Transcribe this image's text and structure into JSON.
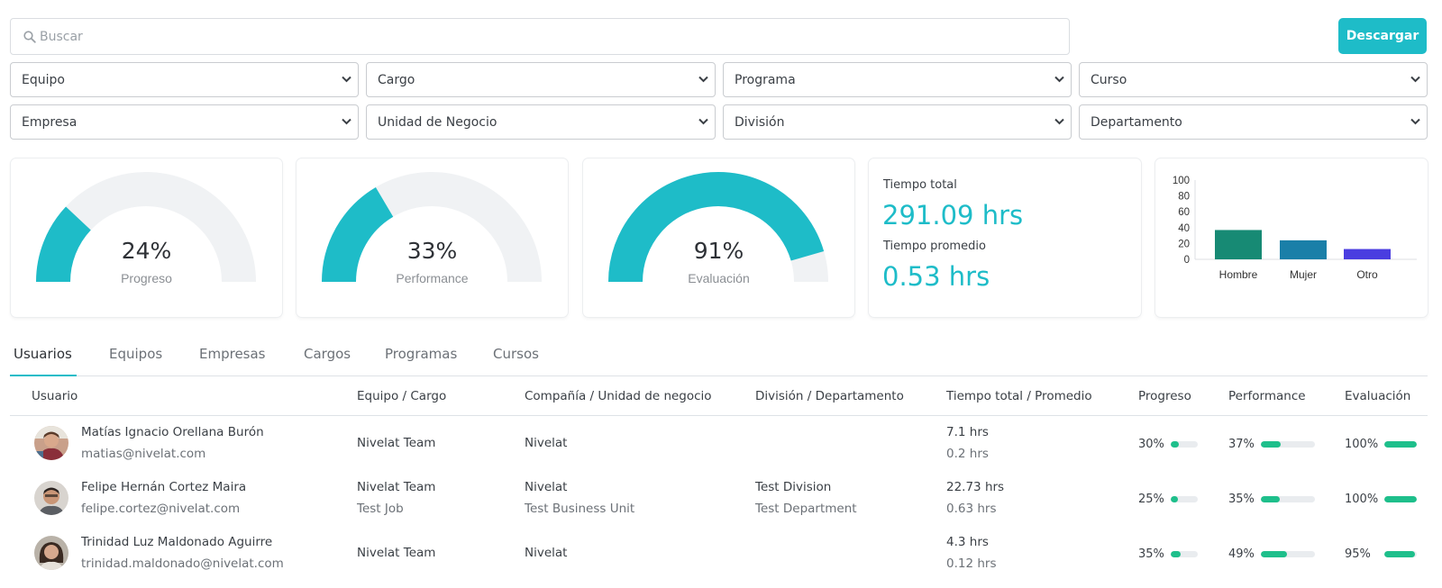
{
  "search": {
    "placeholder": "Buscar"
  },
  "download_label": "Descargar",
  "filters_row1": [
    "Equipo",
    "Cargo",
    "Programa",
    "Curso"
  ],
  "filters_row2": [
    "Empresa",
    "Unidad de Negocio",
    "División",
    "Departamento"
  ],
  "gauges": [
    {
      "value": 24,
      "display": "24%",
      "label": "Progreso"
    },
    {
      "value": 33,
      "display": "33%",
      "label": "Performance"
    },
    {
      "value": 91,
      "display": "91%",
      "label": "Evaluación"
    }
  ],
  "time": {
    "total_label": "Tiempo total",
    "total_value": "291.09 hrs",
    "avg_label": "Tiempo promedio",
    "avg_value": "0.53 hrs"
  },
  "chart_data": {
    "type": "bar",
    "categories": [
      "Hombre",
      "Mujer",
      "Otro"
    ],
    "values": [
      37,
      24,
      13
    ],
    "colors": [
      "#178a74",
      "#1a7fa8",
      "#4a3de0"
    ],
    "yticks": [
      0,
      20,
      40,
      60,
      80,
      100
    ],
    "ylim": [
      0,
      100
    ],
    "title": "",
    "xlabel": "",
    "ylabel": ""
  },
  "tabs": [
    "Usuarios",
    "Equipos",
    "Empresas",
    "Cargos",
    "Programas",
    "Cursos"
  ],
  "table": {
    "headers": [
      "Usuario",
      "Equipo / Cargo",
      "Compañía / Unidad de negocio",
      "División / Departamento",
      "Tiempo total / Promedio",
      "Progreso",
      "Performance",
      "Evaluación"
    ],
    "rows": [
      {
        "name": "Matías Ignacio Orellana Burón",
        "email": "matias@nivelat.com",
        "team": "Nivelat Team",
        "job": "",
        "company": "Nivelat",
        "unit": "",
        "division": "",
        "department": "",
        "total": "7.1 hrs",
        "avg": "0.2 hrs",
        "progress": 30,
        "progress_label": "30%",
        "performance": 37,
        "performance_label": "37%",
        "evaluation": 100,
        "evaluation_label": "100%"
      },
      {
        "name": "Felipe Hernán Cortez Maira",
        "email": "felipe.cortez@nivelat.com",
        "team": "Nivelat Team",
        "job": "Test Job",
        "company": "Nivelat",
        "unit": "Test Business Unit",
        "division": "Test Division",
        "department": "Test Department",
        "total": "22.73 hrs",
        "avg": "0.63 hrs",
        "progress": 25,
        "progress_label": "25%",
        "performance": 35,
        "performance_label": "35%",
        "evaluation": 100,
        "evaluation_label": "100%"
      },
      {
        "name": "Trinidad Luz Maldonado Aguirre",
        "email": "trinidad.maldonado@nivelat.com",
        "team": "Nivelat Team",
        "job": "",
        "company": "Nivelat",
        "unit": "",
        "division": "",
        "department": "",
        "total": "4.3 hrs",
        "avg": "0.12 hrs",
        "progress": 35,
        "progress_label": "35%",
        "performance": 49,
        "performance_label": "49%",
        "evaluation": 95,
        "evaluation_label": "95%"
      }
    ]
  },
  "colors": {
    "accent": "#1ebcc8",
    "bar_fill": "#1ebf8b",
    "track": "#e9ecef"
  }
}
